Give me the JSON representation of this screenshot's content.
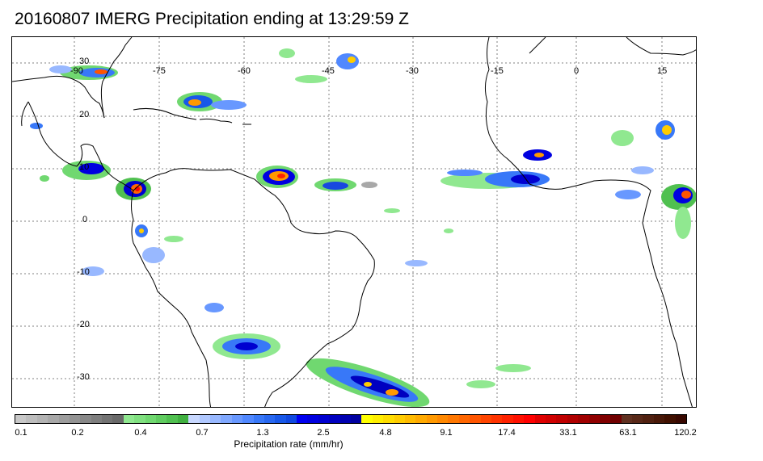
{
  "title": "20160807 IMERG Precipitation ending at 13:29:59 Z",
  "map": {
    "lon_labels": [
      "-90",
      "-75",
      "-60",
      "-45",
      "-30",
      "-15",
      "0",
      "15"
    ],
    "lat_labels": [
      "30",
      "20",
      "10",
      "0",
      "-10",
      "-20",
      "-30"
    ]
  },
  "colorbar": {
    "label": "Precipitation rate (mm/hr)",
    "tick_labels": [
      "0.1",
      "0.2",
      "0.4",
      "0.7",
      "1.3",
      "2.5",
      "4.8",
      "9.1",
      "17.4",
      "33.1",
      "63.1",
      "120.2"
    ],
    "colors": [
      "#c8c8c8",
      "#bdbdbd",
      "#b3b3b3",
      "#a8a8a8",
      "#9d9d9d",
      "#939393",
      "#888888",
      "#7e7e7e",
      "#737373",
      "#696969",
      "#90e890",
      "#80e080",
      "#70d870",
      "#60cc60",
      "#50c050",
      "#40b040",
      "#c8d8ff",
      "#b0c8ff",
      "#98b8ff",
      "#80a8ff",
      "#6898ff",
      "#5088ff",
      "#3878f8",
      "#2868f0",
      "#1858e8",
      "#1048e0",
      "#0000f0",
      "#0000e0",
      "#0000d0",
      "#0000c0",
      "#0000b0",
      "#0000a0",
      "#ffff00",
      "#ffee00",
      "#ffdd00",
      "#ffcc00",
      "#ffbb00",
      "#ffaa00",
      "#ff9900",
      "#ff8800",
      "#ff7700",
      "#ff6600",
      "#ff5500",
      "#ff4400",
      "#ff3300",
      "#ff2200",
      "#ff1100",
      "#ff0000",
      "#e00000",
      "#d00000",
      "#c00000",
      "#b00000",
      "#a00000",
      "#900000",
      "#800000",
      "#700000",
      "#603020",
      "#582818",
      "#502010",
      "#481808",
      "#401000",
      "#380800"
    ]
  }
}
